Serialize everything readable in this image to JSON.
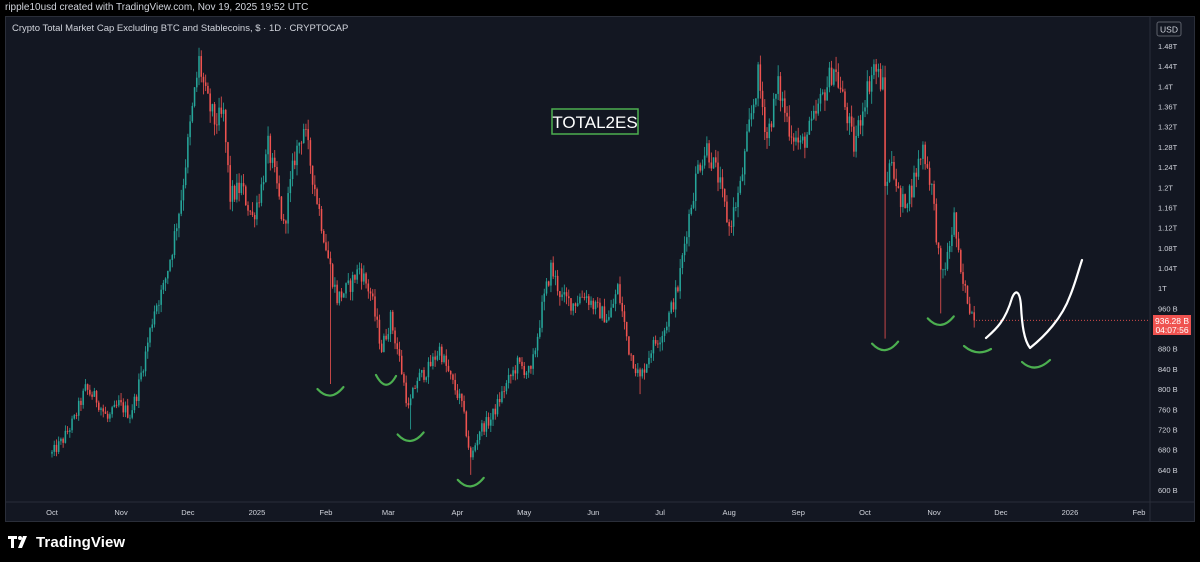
{
  "header": {
    "attribution": "ripple10usd created with TradingView.com, Nov 19, 2025 19:52 UTC"
  },
  "footer": {
    "brand": "TradingView",
    "logo_icon": "tradingview-logo-icon"
  },
  "chart_data": {
    "type": "candlestick",
    "title": "Crypto Total Market Cap Excluding BTC and Stablecoins, $ · 1D · CRYPTOCAP",
    "currency": "USD",
    "annotation": "TOTAL2ES",
    "ylim": [
      0.57,
      1.5
    ],
    "y_unit": "trillion USD",
    "y_ticks": [
      {
        "value": 1.48,
        "label": "1.48T"
      },
      {
        "value": 1.44,
        "label": "1.44T"
      },
      {
        "value": 1.4,
        "label": "1.4T"
      },
      {
        "value": 1.36,
        "label": "1.36T"
      },
      {
        "value": 1.32,
        "label": "1.32T"
      },
      {
        "value": 1.28,
        "label": "1.28T"
      },
      {
        "value": 1.24,
        "label": "1.24T"
      },
      {
        "value": 1.2,
        "label": "1.2T"
      },
      {
        "value": 1.16,
        "label": "1.16T"
      },
      {
        "value": 1.12,
        "label": "1.12T"
      },
      {
        "value": 1.08,
        "label": "1.08T"
      },
      {
        "value": 1.04,
        "label": "1.04T"
      },
      {
        "value": 1.0,
        "label": "1T"
      },
      {
        "value": 0.96,
        "label": "960 B"
      },
      {
        "value": 0.88,
        "label": "880 B"
      },
      {
        "value": 0.84,
        "label": "840 B"
      },
      {
        "value": 0.8,
        "label": "800 B"
      },
      {
        "value": 0.76,
        "label": "760 B"
      },
      {
        "value": 0.72,
        "label": "720 B"
      },
      {
        "value": 0.68,
        "label": "680 B"
      },
      {
        "value": 0.64,
        "label": "640 B"
      },
      {
        "value": 0.6,
        "label": "600 B"
      }
    ],
    "x_ticks": [
      "Oct",
      "Nov",
      "Dec",
      "2025",
      "Feb",
      "Mar",
      "Apr",
      "May",
      "Jun",
      "Jul",
      "Aug",
      "Sep",
      "Oct",
      "Nov",
      "Dec",
      "2026",
      "Feb"
    ],
    "last_price": {
      "value": 0.93628,
      "label": "936.28 B",
      "countdown": "04:07:56"
    },
    "colors": {
      "up": "#26a69a",
      "down": "#ef5350",
      "background": "#131722",
      "annotation": "#4caf50",
      "drawing": "#ffffff"
    },
    "series": [
      {
        "date": "2024-10-01",
        "close": 0.672
      },
      {
        "date": "2024-10-06",
        "close": 0.7
      },
      {
        "date": "2024-10-11",
        "close": 0.74
      },
      {
        "date": "2024-10-16",
        "close": 0.8
      },
      {
        "date": "2024-10-21",
        "close": 0.78
      },
      {
        "date": "2024-10-26",
        "close": 0.74
      },
      {
        "date": "2024-10-31",
        "close": 0.77
      },
      {
        "date": "2024-11-05",
        "close": 0.75
      },
      {
        "date": "2024-11-08",
        "close": 0.79
      },
      {
        "date": "2024-11-12",
        "close": 0.87
      },
      {
        "date": "2024-11-16",
        "close": 0.96
      },
      {
        "date": "2024-11-20",
        "close": 1.0
      },
      {
        "date": "2024-11-24",
        "close": 1.08
      },
      {
        "date": "2024-11-28",
        "close": 1.18
      },
      {
        "date": "2024-12-02",
        "close": 1.32
      },
      {
        "date": "2024-12-06",
        "close": 1.45
      },
      {
        "date": "2024-12-09",
        "close": 1.38
      },
      {
        "date": "2024-12-13",
        "close": 1.33
      },
      {
        "date": "2024-12-17",
        "close": 1.34
      },
      {
        "date": "2024-12-20",
        "close": 1.18
      },
      {
        "date": "2024-12-25",
        "close": 1.2
      },
      {
        "date": "2024-12-30",
        "close": 1.14
      },
      {
        "date": "2025-01-03",
        "close": 1.2
      },
      {
        "date": "2025-01-06",
        "close": 1.28
      },
      {
        "date": "2025-01-10",
        "close": 1.2
      },
      {
        "date": "2025-01-13",
        "close": 1.12
      },
      {
        "date": "2025-01-18",
        "close": 1.26
      },
      {
        "date": "2025-01-22",
        "close": 1.32
      },
      {
        "date": "2025-01-27",
        "close": 1.2
      },
      {
        "date": "2025-02-02",
        "close": 1.06
      },
      {
        "date": "2025-02-06",
        "close": 0.98
      },
      {
        "date": "2025-02-11",
        "close": 1.0
      },
      {
        "date": "2025-02-16",
        "close": 1.04
      },
      {
        "date": "2025-02-21",
        "close": 0.99
      },
      {
        "date": "2025-02-26",
        "close": 0.88
      },
      {
        "date": "2025-03-02",
        "close": 0.94
      },
      {
        "date": "2025-03-06",
        "close": 0.86
      },
      {
        "date": "2025-03-10",
        "close": 0.76
      },
      {
        "date": "2025-03-14",
        "close": 0.82
      },
      {
        "date": "2025-03-19",
        "close": 0.84
      },
      {
        "date": "2025-03-24",
        "close": 0.88
      },
      {
        "date": "2025-03-29",
        "close": 0.82
      },
      {
        "date": "2025-04-03",
        "close": 0.77
      },
      {
        "date": "2025-04-07",
        "close": 0.66
      },
      {
        "date": "2025-04-11",
        "close": 0.72
      },
      {
        "date": "2025-04-16",
        "close": 0.74
      },
      {
        "date": "2025-04-22",
        "close": 0.8
      },
      {
        "date": "2025-04-28",
        "close": 0.85
      },
      {
        "date": "2025-05-04",
        "close": 0.83
      },
      {
        "date": "2025-05-09",
        "close": 0.96
      },
      {
        "date": "2025-05-13",
        "close": 1.04
      },
      {
        "date": "2025-05-18",
        "close": 0.98
      },
      {
        "date": "2025-05-23",
        "close": 0.97
      },
      {
        "date": "2025-05-28",
        "close": 0.99
      },
      {
        "date": "2025-06-02",
        "close": 0.96
      },
      {
        "date": "2025-06-08",
        "close": 0.94
      },
      {
        "date": "2025-06-12",
        "close": 1.0
      },
      {
        "date": "2025-06-17",
        "close": 0.88
      },
      {
        "date": "2025-06-22",
        "close": 0.82
      },
      {
        "date": "2025-06-27",
        "close": 0.88
      },
      {
        "date": "2025-07-03",
        "close": 0.92
      },
      {
        "date": "2025-07-09",
        "close": 1.0
      },
      {
        "date": "2025-07-13",
        "close": 1.12
      },
      {
        "date": "2025-07-18",
        "close": 1.24
      },
      {
        "date": "2025-07-22",
        "close": 1.28
      },
      {
        "date": "2025-07-27",
        "close": 1.22
      },
      {
        "date": "2025-08-01",
        "close": 1.12
      },
      {
        "date": "2025-08-06",
        "close": 1.2
      },
      {
        "date": "2025-08-10",
        "close": 1.32
      },
      {
        "date": "2025-08-14",
        "close": 1.42
      },
      {
        "date": "2025-08-18",
        "close": 1.3
      },
      {
        "date": "2025-08-23",
        "close": 1.4
      },
      {
        "date": "2025-08-28",
        "close": 1.32
      },
      {
        "date": "2025-09-02",
        "close": 1.28
      },
      {
        "date": "2025-09-07",
        "close": 1.32
      },
      {
        "date": "2025-09-12",
        "close": 1.38
      },
      {
        "date": "2025-09-17",
        "close": 1.44
      },
      {
        "date": "2025-09-22",
        "close": 1.36
      },
      {
        "date": "2025-09-26",
        "close": 1.28
      },
      {
        "date": "2025-10-01",
        "close": 1.38
      },
      {
        "date": "2025-10-05",
        "close": 1.44
      },
      {
        "date": "2025-10-09",
        "close": 1.4
      },
      {
        "date": "2025-10-10",
        "close": 1.2
      },
      {
        "date": "2025-10-13",
        "close": 1.26
      },
      {
        "date": "2025-10-17",
        "close": 1.16
      },
      {
        "date": "2025-10-22",
        "close": 1.2
      },
      {
        "date": "2025-10-27",
        "close": 1.28
      },
      {
        "date": "2025-10-31",
        "close": 1.2
      },
      {
        "date": "2025-11-04",
        "close": 1.02
      },
      {
        "date": "2025-11-07",
        "close": 1.06
      },
      {
        "date": "2025-11-10",
        "close": 1.14
      },
      {
        "date": "2025-11-13",
        "close": 1.02
      },
      {
        "date": "2025-11-16",
        "close": 0.98
      },
      {
        "date": "2025-11-19",
        "close": 0.936
      }
    ],
    "wicks_low": [
      {
        "date": "2025-02-03",
        "low": 0.81
      },
      {
        "date": "2025-03-11",
        "low": 0.72
      },
      {
        "date": "2025-04-07",
        "low": 0.63
      },
      {
        "date": "2025-06-22",
        "low": 0.79
      },
      {
        "date": "2025-10-10",
        "low": 0.9
      },
      {
        "date": "2025-11-04",
        "low": 0.95
      }
    ]
  }
}
